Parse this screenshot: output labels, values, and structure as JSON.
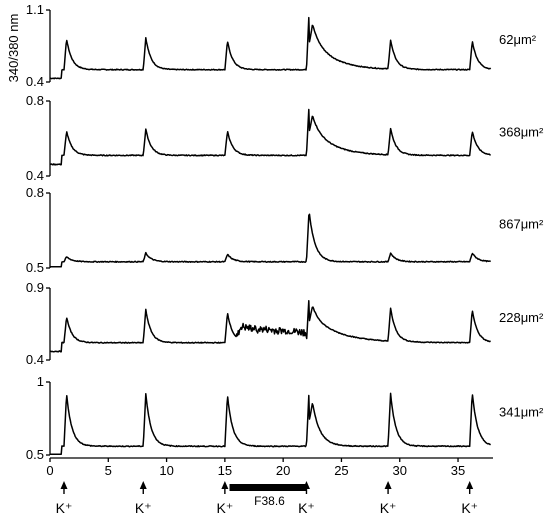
{
  "chart_data": {
    "type": "line",
    "ylabel": "340/380 nm",
    "xlabel": "",
    "xlim": [
      0,
      38
    ],
    "x_ticks": [
      "0",
      "5",
      "10",
      "15",
      "20",
      "25",
      "30",
      "35"
    ],
    "stimulus_label": "K⁺",
    "stimulus_times": [
      1.2,
      8,
      15,
      22,
      29,
      36
    ],
    "drug": {
      "label": "F38.6",
      "start": 16,
      "end": 22
    },
    "panels": [
      {
        "name": "62μm²",
        "ylim": [
          0.4,
          1.1
        ],
        "ytick_labels": [
          "1.1",
          "0.4"
        ],
        "baseline": 0.52,
        "peaks": [
          0.82,
          0.83,
          0.8,
          1.08,
          0.8,
          0.8
        ],
        "drug_level": 0.0,
        "f_decay": 1.5
      },
      {
        "name": "368μm²",
        "ylim": [
          0.4,
          0.8
        ],
        "ytick_labels": [
          "0.8",
          "0.4"
        ],
        "baseline": 0.51,
        "peaks": [
          0.64,
          0.65,
          0.64,
          0.78,
          0.65,
          0.64
        ],
        "drug_level": 0.0,
        "f_decay": 1.5
      },
      {
        "name": "867μm²",
        "ylim": [
          0.5,
          0.8
        ],
        "ytick_labels": [
          "0.8",
          "0.5"
        ],
        "baseline": 0.525,
        "peaks": [
          0.545,
          0.56,
          0.555,
          0.73,
          0.56,
          0.56
        ],
        "drug_level": 0.0,
        "f_decay": 0.3
      },
      {
        "name": "228μm²",
        "ylim": [
          0.4,
          0.9
        ],
        "ytick_labels": [
          "0.9",
          "0.4"
        ],
        "baseline": 0.52,
        "peaks": [
          0.7,
          0.75,
          0.73,
          0.84,
          0.75,
          0.75
        ],
        "drug_level": 0.62,
        "f_decay": 2.0
      },
      {
        "name": "341μm²",
        "ylim": [
          0.5,
          1.0
        ],
        "ytick_labels": [
          "1",
          "0.5"
        ],
        "baseline": 0.56,
        "peaks": [
          0.92,
          0.92,
          0.91,
          0.94,
          0.92,
          0.93
        ],
        "drug_level": 0.0,
        "f_decay": 0.6
      }
    ]
  }
}
